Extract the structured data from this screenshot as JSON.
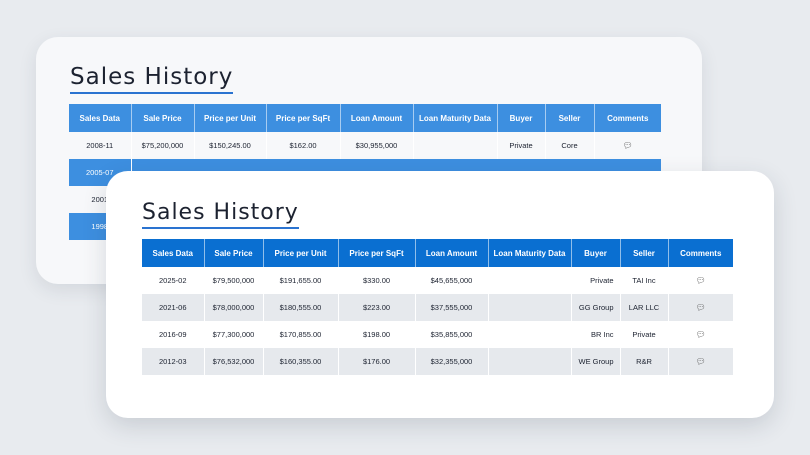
{
  "back": {
    "title": "Sales History",
    "headers": [
      "Sales Data",
      "Sale Price",
      "Price per Unit",
      "Price per SqFt",
      "Loan Amount",
      "Loan Maturity Data",
      "Buyer",
      "Seller",
      "Comments"
    ],
    "rows": [
      [
        "2008-11",
        "$75,200,000",
        "$150,245.00",
        "$162.00",
        "$30,955,000",
        "",
        "Private",
        "Core",
        ""
      ],
      [
        "2005-07",
        "",
        "",
        "",
        "",
        "",
        "",
        "",
        ""
      ],
      [
        "2001",
        "",
        "",
        "",
        "",
        "",
        "",
        "",
        ""
      ],
      [
        "1998",
        "",
        "",
        "",
        "",
        "",
        "",
        "",
        ""
      ]
    ]
  },
  "front": {
    "title": "Sales History",
    "headers": [
      "Sales Data",
      "Sale Price",
      "Price per Unit",
      "Price per SqFt",
      "Loan Amount",
      "Loan Maturity Data",
      "Buyer",
      "Seller",
      "Comments"
    ],
    "rows": [
      [
        "2025-02",
        "$79,500,000",
        "$191,655.00",
        "$330.00",
        "$45,655,000",
        "",
        "Private",
        "TAI Inc",
        ""
      ],
      [
        "2021-06",
        "$78,000,000",
        "$180,555.00",
        "$223.00",
        "$37,555,000",
        "",
        "GG Group",
        "LAR LLC",
        ""
      ],
      [
        "2016-09",
        "$77,300,000",
        "$170,855.00",
        "$198.00",
        "$35,855,000",
        "",
        "BR Inc",
        "Private",
        ""
      ],
      [
        "2012-03",
        "$76,532,000",
        "$160,355.00",
        "$176.00",
        "$32,355,000",
        "",
        "WE Group",
        "R&R",
        ""
      ]
    ]
  },
  "icons": {
    "comment": "speech-bubble-icon"
  },
  "colors": {
    "back_header": "#3d8fe0",
    "front_header": "#0a6fd1",
    "alt_row": "#e6e9ed",
    "title_underline": "#2a73d0"
  }
}
